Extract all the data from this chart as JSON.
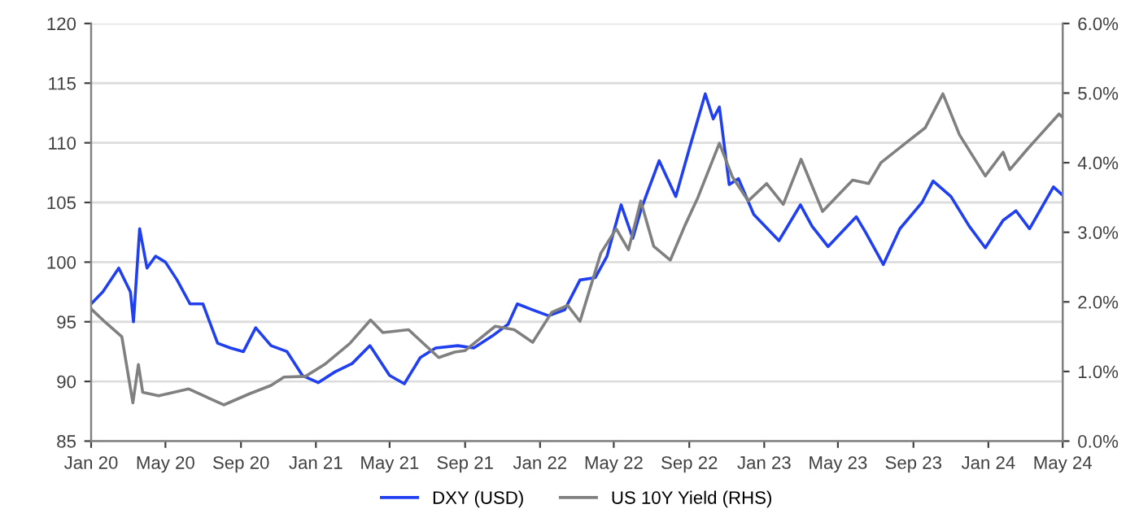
{
  "chart_data": {
    "type": "line",
    "legend": "bottom",
    "grid": "y",
    "marker": "none",
    "line_style": "solid",
    "xlim": [
      "2020-01",
      "2024-05"
    ],
    "xticks": [
      {
        "value": "2020-01",
        "label": "Jan 20"
      },
      {
        "value": "2020-05",
        "label": "May 20"
      },
      {
        "value": "2020-09",
        "label": "Sep 20"
      },
      {
        "value": "2021-01",
        "label": "Jan 21"
      },
      {
        "value": "2021-05",
        "label": "May 21"
      },
      {
        "value": "2021-09",
        "label": "Sep 21"
      },
      {
        "value": "2022-01",
        "label": "Jan 22"
      },
      {
        "value": "2022-05",
        "label": "May 22"
      },
      {
        "value": "2022-09",
        "label": "Sep 22"
      },
      {
        "value": "2023-01",
        "label": "Jan 23"
      },
      {
        "value": "2023-05",
        "label": "May 23"
      },
      {
        "value": "2023-09",
        "label": "Sep 23"
      },
      {
        "value": "2024-01",
        "label": "Jan 24"
      },
      {
        "value": "2024-05",
        "label": "May 24"
      }
    ],
    "ylim": [
      85,
      120
    ],
    "yticks": [
      85,
      90,
      95,
      100,
      105,
      110,
      115,
      120
    ],
    "y2lim": [
      0,
      6
    ],
    "y2ticks": [
      {
        "value": 0,
        "label": "0.0%"
      },
      {
        "value": 1,
        "label": "1.0%"
      },
      {
        "value": 2,
        "label": "2.0%"
      },
      {
        "value": 3,
        "label": "3.0%"
      },
      {
        "value": 4,
        "label": "4.0%"
      },
      {
        "value": 5,
        "label": "5.0%"
      },
      {
        "value": 6,
        "label": "6.0%"
      }
    ],
    "series": [
      {
        "name": "DXY (USD)",
        "color": "#1f3ff0",
        "x": [
          "2020-01-01",
          "2020-01-20",
          "2020-02-15",
          "2020-03-05",
          "2020-03-10",
          "2020-03-20",
          "2020-04-01",
          "2020-04-15",
          "2020-05-01",
          "2020-05-20",
          "2020-06-10",
          "2020-07-01",
          "2020-07-25",
          "2020-08-15",
          "2020-09-05",
          "2020-09-25",
          "2020-10-20",
          "2020-11-15",
          "2020-12-10",
          "2021-01-05",
          "2021-02-01",
          "2021-03-01",
          "2021-03-30",
          "2021-05-01",
          "2021-05-25",
          "2021-06-20",
          "2021-07-15",
          "2021-08-20",
          "2021-09-15",
          "2021-10-15",
          "2021-11-10",
          "2021-11-25",
          "2021-12-20",
          "2022-01-15",
          "2022-02-10",
          "2022-03-07",
          "2022-04-01",
          "2022-04-20",
          "2022-05-13",
          "2022-06-01",
          "2022-06-15",
          "2022-07-14",
          "2022-08-10",
          "2022-09-01",
          "2022-09-27",
          "2022-10-10",
          "2022-10-20",
          "2022-11-05",
          "2022-11-20",
          "2022-12-15",
          "2023-01-25",
          "2023-03-01",
          "2023-03-20",
          "2023-04-15",
          "2023-05-31",
          "2023-06-15",
          "2023-07-14",
          "2023-08-10",
          "2023-09-15",
          "2023-10-03",
          "2023-11-01",
          "2023-12-01",
          "2023-12-27",
          "2024-01-25",
          "2024-02-15",
          "2024-03-08",
          "2024-04-16",
          "2024-05-01"
        ],
        "values": [
          96.5,
          97.5,
          99.5,
          97.5,
          95.0,
          102.8,
          99.5,
          100.5,
          100.0,
          98.5,
          96.5,
          96.5,
          93.2,
          92.8,
          92.5,
          94.5,
          93.0,
          92.5,
          90.5,
          89.9,
          90.8,
          91.5,
          93.0,
          90.5,
          89.8,
          92.0,
          92.8,
          93.0,
          92.8,
          93.8,
          94.8,
          96.5,
          96.0,
          95.5,
          96.0,
          98.5,
          98.7,
          100.5,
          104.8,
          102.0,
          104.5,
          108.5,
          105.5,
          109.5,
          114.1,
          112.0,
          113.0,
          106.5,
          107.0,
          104.0,
          101.8,
          104.8,
          103.0,
          101.3,
          103.8,
          102.5,
          99.8,
          102.8,
          105.0,
          106.8,
          105.5,
          103.0,
          101.2,
          103.5,
          104.3,
          102.8,
          106.3,
          105.6
        ]
      },
      {
        "name": "US 10Y Yield (RHS)",
        "color": "#808080",
        "axis": "y2",
        "x": [
          "2020-01-01",
          "2020-01-25",
          "2020-02-20",
          "2020-03-09",
          "2020-03-18",
          "2020-03-25",
          "2020-04-20",
          "2020-06-08",
          "2020-07-15",
          "2020-08-04",
          "2020-09-15",
          "2020-10-20",
          "2020-11-10",
          "2020-12-15",
          "2021-01-15",
          "2021-02-25",
          "2021-03-31",
          "2021-04-20",
          "2021-06-01",
          "2021-07-20",
          "2021-08-15",
          "2021-09-01",
          "2021-10-20",
          "2021-11-20",
          "2021-12-20",
          "2022-01-20",
          "2022-02-15",
          "2022-03-07",
          "2022-04-10",
          "2022-05-05",
          "2022-05-25",
          "2022-06-14",
          "2022-07-05",
          "2022-08-01",
          "2022-08-25",
          "2022-09-15",
          "2022-10-20",
          "2022-11-10",
          "2022-12-06",
          "2023-01-05",
          "2023-02-01",
          "2023-03-02",
          "2023-04-06",
          "2023-05-25",
          "2023-06-20",
          "2023-07-10",
          "2023-08-22",
          "2023-09-20",
          "2023-10-19",
          "2023-11-15",
          "2023-12-27",
          "2024-01-25",
          "2024-02-05",
          "2024-03-05",
          "2024-04-25",
          "2024-05-01"
        ],
        "values": [
          1.9,
          1.7,
          1.5,
          0.55,
          1.1,
          0.7,
          0.65,
          0.75,
          0.6,
          0.52,
          0.68,
          0.8,
          0.92,
          0.93,
          1.1,
          1.4,
          1.74,
          1.56,
          1.6,
          1.2,
          1.28,
          1.3,
          1.65,
          1.6,
          1.42,
          1.85,
          1.95,
          1.72,
          2.7,
          3.05,
          2.75,
          3.45,
          2.8,
          2.6,
          3.1,
          3.5,
          4.28,
          3.8,
          3.45,
          3.7,
          3.4,
          4.05,
          3.3,
          3.75,
          3.7,
          4.0,
          4.3,
          4.5,
          4.99,
          4.4,
          3.81,
          4.15,
          3.9,
          4.2,
          4.7,
          4.65
        ]
      }
    ]
  }
}
